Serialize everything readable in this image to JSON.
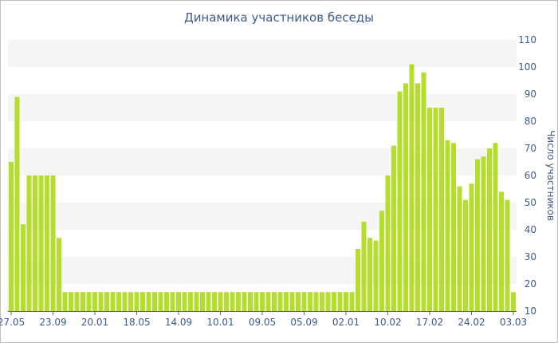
{
  "chart_data": {
    "type": "bar",
    "title": "Динамика участников беседы",
    "ylabel": "Число участников",
    "ylim": [
      10,
      110
    ],
    "yticks": [
      10,
      20,
      30,
      40,
      50,
      60,
      70,
      80,
      90,
      100,
      110
    ],
    "xticks": [
      {
        "label": "27.05",
        "index": 0
      },
      {
        "label": "23.09",
        "index": 7
      },
      {
        "label": "20.01",
        "index": 14
      },
      {
        "label": "18.05",
        "index": 21
      },
      {
        "label": "14.09",
        "index": 28
      },
      {
        "label": "10.01",
        "index": 35
      },
      {
        "label": "09.05",
        "index": 42
      },
      {
        "label": "05.09",
        "index": 49
      },
      {
        "label": "02.01",
        "index": 56
      },
      {
        "label": "10.02",
        "index": 63
      },
      {
        "label": "17.02",
        "index": 70
      },
      {
        "label": "24.02",
        "index": 77
      },
      {
        "label": "03.03",
        "index": 84
      }
    ],
    "values": [
      65,
      89,
      42,
      60,
      60,
      60,
      60,
      60,
      37,
      17,
      17,
      17,
      17,
      17,
      17,
      17,
      17,
      17,
      17,
      17,
      17,
      17,
      17,
      17,
      17,
      17,
      17,
      17,
      17,
      17,
      17,
      17,
      17,
      17,
      17,
      17,
      17,
      17,
      17,
      17,
      17,
      17,
      17,
      17,
      17,
      17,
      17,
      17,
      17,
      17,
      17,
      17,
      17,
      17,
      17,
      17,
      17,
      17,
      33,
      43,
      37,
      36,
      47,
      60,
      71,
      91,
      94,
      101,
      94,
      98,
      85,
      85,
      85,
      73,
      72,
      56,
      51,
      57,
      66,
      67,
      70,
      72,
      54,
      51,
      17
    ],
    "bar_color": "#b5de2c",
    "band_color": "#f5f5f5",
    "grid": true
  }
}
